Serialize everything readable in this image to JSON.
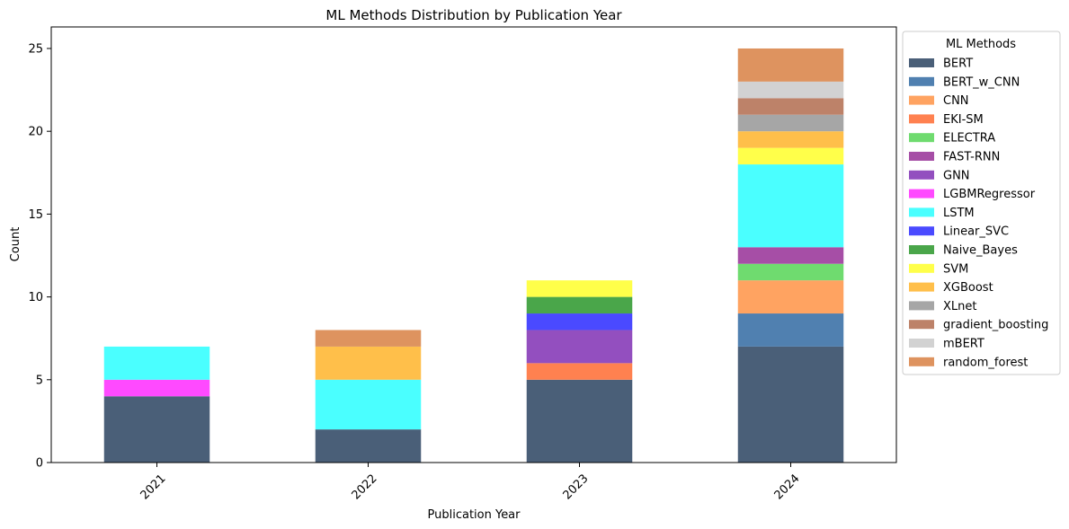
{
  "chart_data": {
    "type": "bar",
    "stacked": true,
    "title": "ML Methods Distribution by Publication Year",
    "xlabel": "Publication Year",
    "ylabel": "Count",
    "categories": [
      "2021",
      "2022",
      "2023",
      "2024"
    ],
    "ylim": [
      0,
      26.3
    ],
    "yticks": [
      0,
      5,
      10,
      15,
      20,
      25
    ],
    "legend": {
      "title": "ML Methods",
      "placement": "outside-right"
    },
    "series": [
      {
        "name": "BERT",
        "color": "#4a5f78",
        "values": [
          4,
          2,
          5,
          7
        ]
      },
      {
        "name": "BERT_w_CNN",
        "color": "#5080b0",
        "values": [
          0,
          0,
          0,
          2
        ]
      },
      {
        "name": "CNN",
        "color": "#ffa361",
        "values": [
          0,
          0,
          0,
          2
        ]
      },
      {
        "name": "EKI-SM",
        "color": "#ff8150",
        "values": [
          0,
          0,
          1,
          0
        ]
      },
      {
        "name": "ELECTRA",
        "color": "#6fdb6f",
        "values": [
          0,
          0,
          0,
          1
        ]
      },
      {
        "name": "FAST-RNN",
        "color": "#a64ea6",
        "values": [
          0,
          0,
          0,
          1
        ]
      },
      {
        "name": "GNN",
        "color": "#934fbf",
        "values": [
          0,
          0,
          2,
          0
        ]
      },
      {
        "name": "LGBMRegressor",
        "color": "#ff4aff",
        "values": [
          1,
          0,
          0,
          0
        ]
      },
      {
        "name": "LSTM",
        "color": "#4affff",
        "values": [
          2,
          3,
          0,
          5
        ]
      },
      {
        "name": "Linear_SVC",
        "color": "#4a4aff",
        "values": [
          0,
          0,
          1,
          0
        ]
      },
      {
        "name": "Naive_Bayes",
        "color": "#4aa64a",
        "values": [
          0,
          0,
          1,
          0
        ]
      },
      {
        "name": "SVM",
        "color": "#ffff4a",
        "values": [
          0,
          0,
          1,
          1
        ]
      },
      {
        "name": "XGBoost",
        "color": "#ffbf4a",
        "values": [
          0,
          2,
          0,
          1
        ]
      },
      {
        "name": "XLnet",
        "color": "#a6a6a6",
        "values": [
          0,
          0,
          0,
          1
        ]
      },
      {
        "name": "gradient_boosting",
        "color": "#bd8269",
        "values": [
          0,
          0,
          0,
          1
        ]
      },
      {
        "name": "mBERT",
        "color": "#d2d2d2",
        "values": [
          0,
          0,
          0,
          1
        ]
      },
      {
        "name": "random_forest",
        "color": "#de935f",
        "values": [
          0,
          1,
          0,
          2
        ]
      }
    ]
  }
}
